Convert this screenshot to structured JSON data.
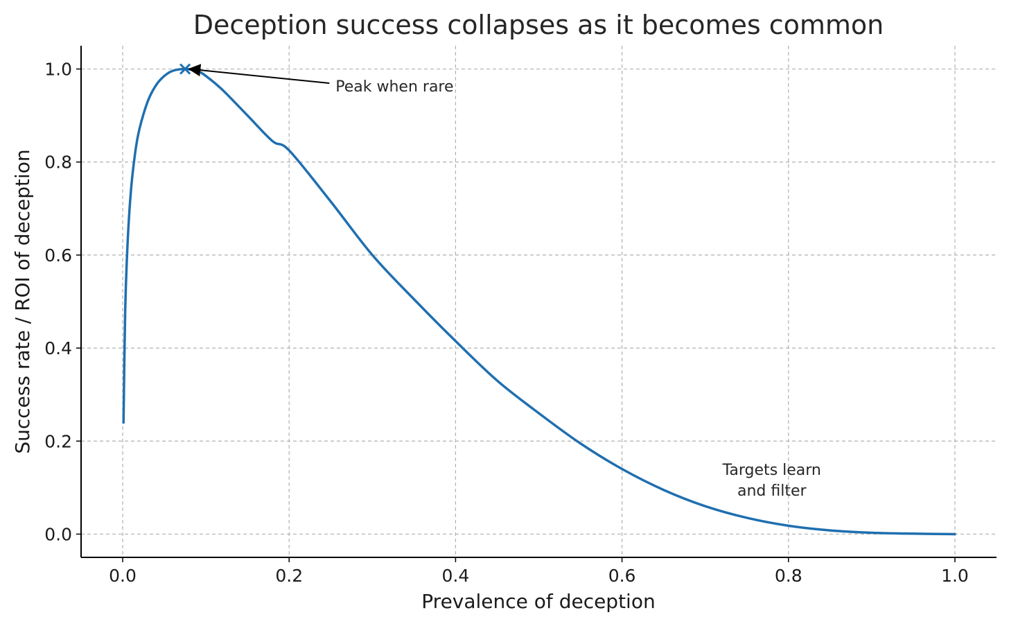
{
  "chart_data": {
    "type": "line",
    "title": "Deception success collapses as it becomes common",
    "xlabel": "Prevalence of deception",
    "ylabel": "Success rate / ROI of deception",
    "xlim": [
      -0.05,
      1.05
    ],
    "ylim": [
      -0.05,
      1.05
    ],
    "x_ticks": [
      0.0,
      0.2,
      0.4,
      0.6,
      0.8,
      1.0
    ],
    "y_ticks": [
      0.0,
      0.2,
      0.4,
      0.6,
      0.8,
      1.0
    ],
    "tick_labels_x": [
      "0.0",
      "0.2",
      "0.4",
      "0.6",
      "0.8",
      "1.0"
    ],
    "tick_labels_y": [
      "0.0",
      "0.2",
      "0.4",
      "0.6",
      "0.8",
      "1.0"
    ],
    "grid": true,
    "series": [
      {
        "name": "Success rate / ROI",
        "color": "#1f6fb0",
        "x": [
          0.001,
          0.003,
          0.006,
          0.01,
          0.015,
          0.02,
          0.03,
          0.04,
          0.05,
          0.06,
          0.075,
          0.09,
          0.1,
          0.12,
          0.15,
          0.18,
          0.2,
          0.25,
          0.3,
          0.35,
          0.4,
          0.45,
          0.5,
          0.55,
          0.6,
          0.65,
          0.7,
          0.75,
          0.8,
          0.85,
          0.9,
          0.95,
          1.0
        ],
        "y": [
          0.24,
          0.48,
          0.63,
          0.74,
          0.82,
          0.87,
          0.93,
          0.965,
          0.985,
          0.996,
          1.0,
          0.995,
          0.985,
          0.955,
          0.9,
          0.845,
          0.825,
          0.715,
          0.6,
          0.505,
          0.415,
          0.33,
          0.26,
          0.195,
          0.14,
          0.095,
          0.06,
          0.035,
          0.018,
          0.008,
          0.003,
          0.001,
          0.0
        ]
      }
    ],
    "peak_marker": {
      "x": 0.075,
      "y": 1.0,
      "symbol": "x"
    },
    "annotations": [
      {
        "text": "Peak when rare",
        "x": 0.255,
        "y": 0.965,
        "arrow_to": [
          0.075,
          1.0
        ]
      },
      {
        "text_lines": [
          "Targets learn",
          "and filter"
        ],
        "x": 0.78,
        "y": 0.12
      }
    ]
  }
}
